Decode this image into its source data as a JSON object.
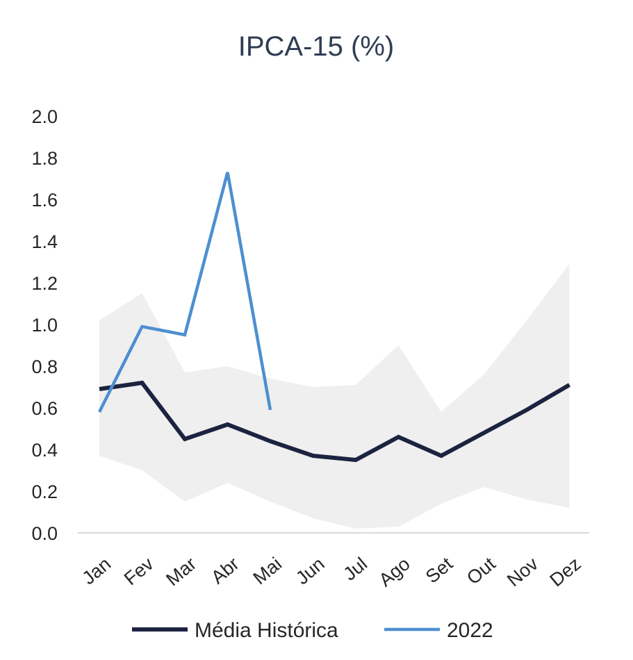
{
  "chart_data": {
    "type": "line",
    "title": "IPCA-15 (%)",
    "categories": [
      "Jan",
      "Fev",
      "Mar",
      "Abr",
      "Mai",
      "Jun",
      "Jul",
      "Ago",
      "Set",
      "Out",
      "Nov",
      "Dez"
    ],
    "ylim": [
      0,
      2.0
    ],
    "yticks": [
      "0.0",
      "0.2",
      "0.4",
      "0.6",
      "0.8",
      "1.0",
      "1.2",
      "1.4",
      "1.6",
      "1.8",
      "2.0"
    ],
    "series": [
      {
        "name": "Média Histórica",
        "color": "#1c2340",
        "values": [
          0.69,
          0.72,
          0.45,
          0.52,
          0.44,
          0.37,
          0.35,
          0.46,
          0.37,
          0.48,
          0.59,
          0.71
        ]
      },
      {
        "name": "2022",
        "color": "#4d8fd0",
        "values": [
          0.58,
          0.99,
          0.95,
          1.73,
          0.59,
          null,
          null,
          null,
          null,
          null,
          null,
          null
        ]
      }
    ],
    "band": {
      "color": "#efefef",
      "upper": [
        1.02,
        1.15,
        0.77,
        0.8,
        0.74,
        0.7,
        0.71,
        0.9,
        0.58,
        0.76,
        1.02,
        1.29
      ],
      "lower": [
        0.37,
        0.3,
        0.15,
        0.24,
        0.15,
        0.07,
        0.02,
        0.03,
        0.14,
        0.22,
        0.16,
        0.12
      ]
    },
    "grid": false,
    "legend": "bottom"
  }
}
